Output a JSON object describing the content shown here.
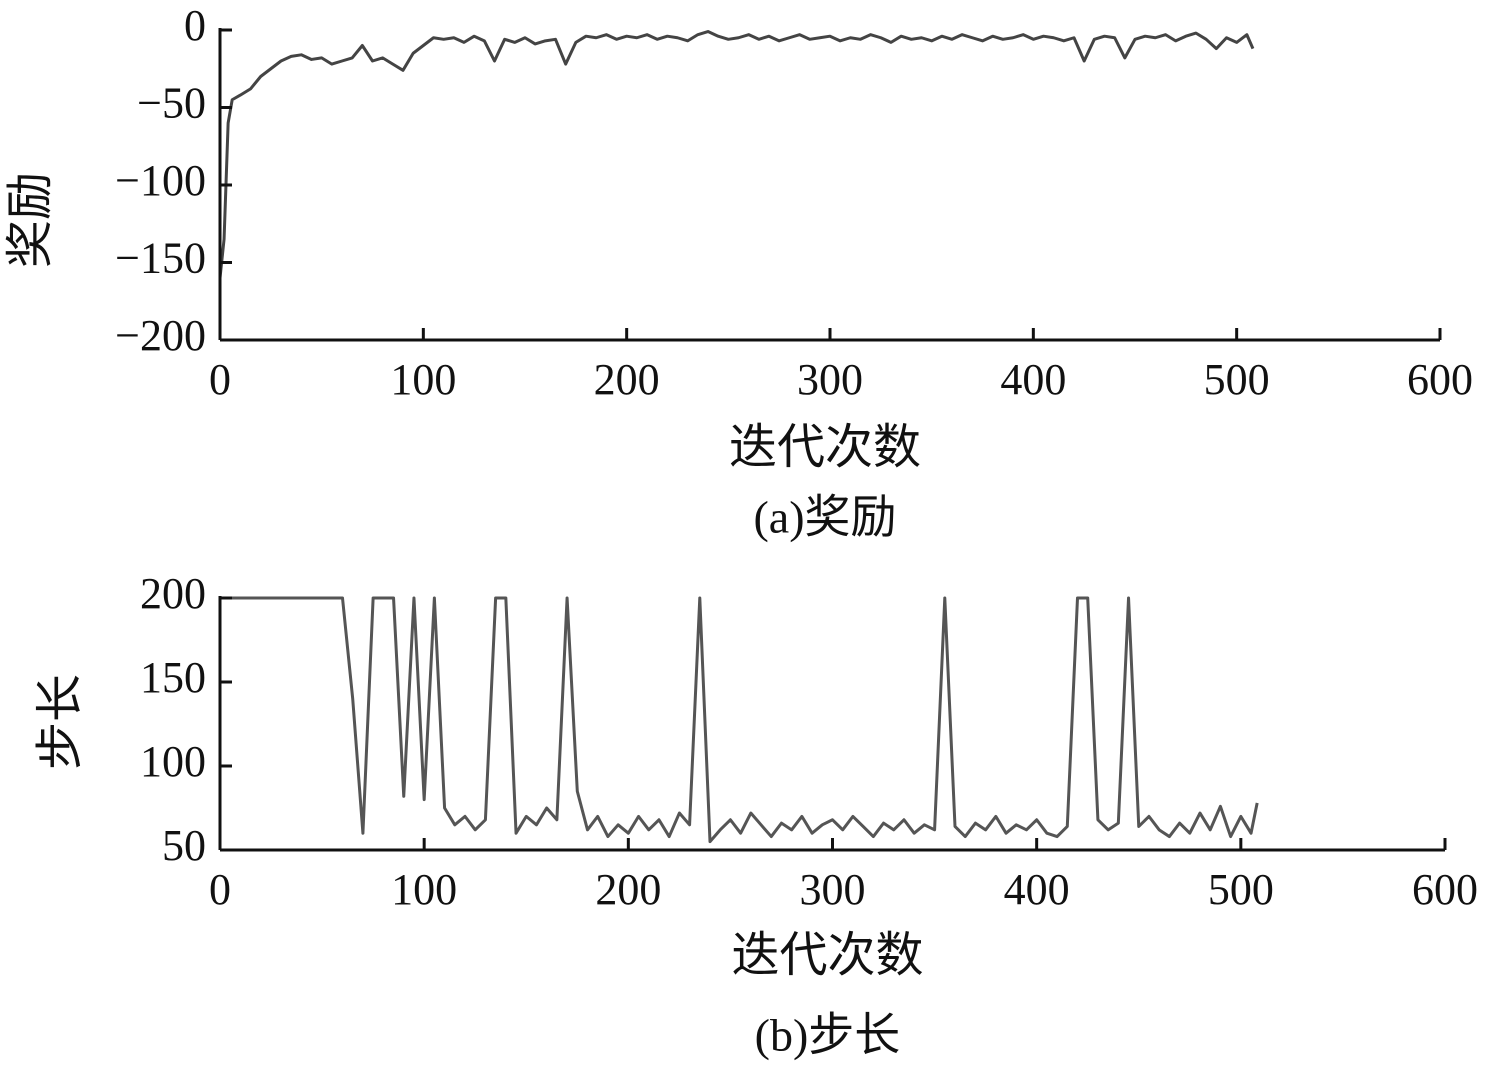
{
  "chart_data": [
    {
      "type": "line",
      "ylabel": "奖励",
      "xlabel": "迭代次数",
      "caption": "(a)奖励",
      "color": "#444444",
      "x": [
        0,
        2,
        4,
        6,
        10,
        15,
        20,
        25,
        30,
        35,
        40,
        45,
        50,
        55,
        60,
        65,
        70,
        75,
        80,
        85,
        90,
        95,
        100,
        105,
        110,
        115,
        120,
        125,
        130,
        135,
        140,
        145,
        150,
        155,
        160,
        165,
        170,
        175,
        180,
        185,
        190,
        195,
        200,
        205,
        210,
        215,
        220,
        225,
        230,
        235,
        240,
        245,
        250,
        255,
        260,
        265,
        270,
        275,
        280,
        285,
        290,
        295,
        300,
        305,
        310,
        315,
        320,
        325,
        330,
        335,
        340,
        345,
        350,
        355,
        360,
        365,
        370,
        375,
        380,
        385,
        390,
        395,
        400,
        405,
        410,
        415,
        420,
        425,
        430,
        435,
        440,
        445,
        450,
        455,
        460,
        465,
        470,
        475,
        480,
        485,
        490,
        495,
        500,
        505,
        508
      ],
      "values": [
        -160,
        -135,
        -60,
        -45,
        -42,
        -38,
        -30,
        -25,
        -20,
        -17,
        -16,
        -19,
        -18,
        -22,
        -20,
        -18,
        -10,
        -20,
        -18,
        -22,
        -26,
        -15,
        -10,
        -5,
        -6,
        -5,
        -8,
        -4,
        -7,
        -20,
        -6,
        -8,
        -5,
        -9,
        -7,
        -6,
        -22,
        -8,
        -4,
        -5,
        -3,
        -6,
        -4,
        -5,
        -3,
        -6,
        -4,
        -5,
        -7,
        -3,
        -1,
        -4,
        -6,
        -5,
        -3,
        -6,
        -4,
        -7,
        -5,
        -3,
        -6,
        -5,
        -4,
        -7,
        -5,
        -6,
        -3,
        -5,
        -8,
        -4,
        -6,
        -5,
        -7,
        -4,
        -6,
        -3,
        -5,
        -7,
        -4,
        -6,
        -5,
        -3,
        -6,
        -4,
        -5,
        -7,
        -5,
        -20,
        -6,
        -4,
        -5,
        -18,
        -6,
        -4,
        -5,
        -3,
        -7,
        -4,
        -2,
        -6,
        -12,
        -5,
        -8,
        -3,
        -12
      ],
      "xlim": [
        0,
        600
      ],
      "xticks": [
        0,
        100,
        200,
        300,
        400,
        500,
        600
      ],
      "ylim": [
        -200,
        0
      ],
      "yticks": [
        {
          "value": 0,
          "label": "0"
        },
        {
          "value": -50,
          "label": "−50"
        },
        {
          "value": -100,
          "label": "−100"
        },
        {
          "value": -150,
          "label": "−150"
        },
        {
          "value": -200,
          "label": "−200"
        }
      ]
    },
    {
      "type": "line",
      "ylabel": "步长",
      "xlabel": "迭代次数",
      "caption": "(b)步长",
      "color": "#555555",
      "x": [
        0,
        2,
        4,
        6,
        10,
        15,
        20,
        25,
        30,
        35,
        40,
        45,
        50,
        55,
        60,
        65,
        70,
        75,
        80,
        85,
        90,
        95,
        100,
        105,
        110,
        115,
        120,
        125,
        130,
        135,
        140,
        145,
        150,
        155,
        160,
        165,
        170,
        175,
        180,
        185,
        190,
        195,
        200,
        205,
        210,
        215,
        220,
        225,
        230,
        235,
        240,
        245,
        250,
        255,
        260,
        265,
        270,
        275,
        280,
        285,
        290,
        295,
        300,
        305,
        310,
        315,
        320,
        325,
        330,
        335,
        340,
        345,
        350,
        355,
        360,
        365,
        370,
        375,
        380,
        385,
        390,
        395,
        400,
        405,
        410,
        415,
        420,
        425,
        430,
        435,
        440,
        445,
        450,
        455,
        460,
        465,
        470,
        475,
        480,
        485,
        490,
        495,
        500,
        505,
        508
      ],
      "values": [
        200,
        200,
        200,
        200,
        200,
        200,
        200,
        200,
        200,
        200,
        200,
        200,
        200,
        200,
        200,
        140,
        60,
        200,
        200,
        200,
        82,
        200,
        80,
        200,
        75,
        65,
        70,
        62,
        68,
        200,
        200,
        60,
        70,
        65,
        75,
        68,
        200,
        85,
        62,
        70,
        58,
        65,
        60,
        70,
        62,
        68,
        58,
        72,
        65,
        200,
        55,
        62,
        68,
        60,
        72,
        65,
        58,
        66,
        62,
        70,
        60,
        65,
        68,
        62,
        70,
        64,
        58,
        66,
        62,
        68,
        60,
        65,
        62,
        200,
        64,
        58,
        66,
        62,
        70,
        60,
        65,
        62,
        68,
        60,
        58,
        64,
        200,
        200,
        68,
        62,
        66,
        200,
        64,
        70,
        62,
        58,
        66,
        60,
        72,
        62,
        76,
        58,
        70,
        60,
        78
      ],
      "xlim": [
        0,
        600
      ],
      "xticks": [
        0,
        100,
        200,
        300,
        400,
        500,
        600
      ],
      "ylim": [
        50,
        200
      ],
      "yticks": [
        200,
        150,
        100,
        50
      ]
    }
  ]
}
